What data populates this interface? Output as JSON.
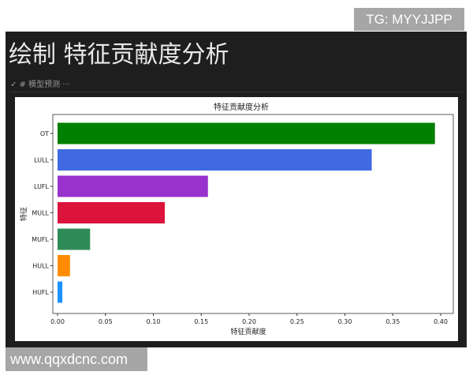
{
  "watermarks": {
    "top": "TG: MYYJJPP",
    "bottom": "www.qqxdcnc.com"
  },
  "notebook": {
    "heading": "绘制 特征贡献度分析",
    "cell_label": "✓ # 模型预测 ···"
  },
  "chart_data": {
    "type": "bar",
    "orientation": "horizontal",
    "title": "特征贡献度分析",
    "xlabel": "特征贡献度",
    "ylabel": "特征",
    "categories": [
      "OT",
      "LULL",
      "LUFL",
      "MULL",
      "MUFL",
      "HULL",
      "HUFL"
    ],
    "values": [
      0.394,
      0.328,
      0.157,
      0.112,
      0.034,
      0.013,
      0.005
    ],
    "colors": [
      "#008000",
      "#4169e1",
      "#9932cc",
      "#dc143c",
      "#2e8b57",
      "#ff8c00",
      "#1e90ff"
    ],
    "xlim": [
      0,
      0.41
    ],
    "xticks": [
      "0.00",
      "0.05",
      "0.10",
      "0.15",
      "0.20",
      "0.25",
      "0.30",
      "0.35",
      "0.40"
    ],
    "grid": false
  }
}
